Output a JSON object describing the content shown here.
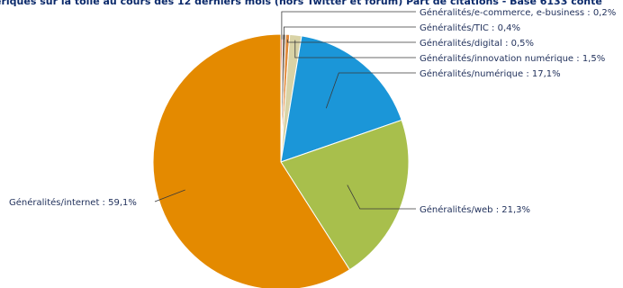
{
  "chart_data": {
    "type": "pie",
    "title": "ériques sur la toile au cours des 12 derniers mois (hors Twitter et forum) Part de citations - Base 6133 conte",
    "slices": [
      {
        "label": "Généralités/e-commerce, e-business : 0,2%",
        "value": 0.2,
        "color": "#c0392b"
      },
      {
        "label": "Généralités/TIC : 0,4%",
        "value": 0.4,
        "color": "#7a6a5a"
      },
      {
        "label": "Généralités/digital : 0,5%",
        "value": 0.5,
        "color": "#e08a3c"
      },
      {
        "label": "Généralités/innovation numérique : 1,5%",
        "value": 1.5,
        "color": "#d9d3a6"
      },
      {
        "label": "Généralités/numérique : 17,1%",
        "value": 17.1,
        "color": "#1b96d8"
      },
      {
        "label": "Généralités/web : 21,3%",
        "value": 21.3,
        "color": "#a8bf4c"
      },
      {
        "label": "Généralités/internet : 59,1%",
        "value": 59.1,
        "color": "#e48a00"
      }
    ]
  }
}
